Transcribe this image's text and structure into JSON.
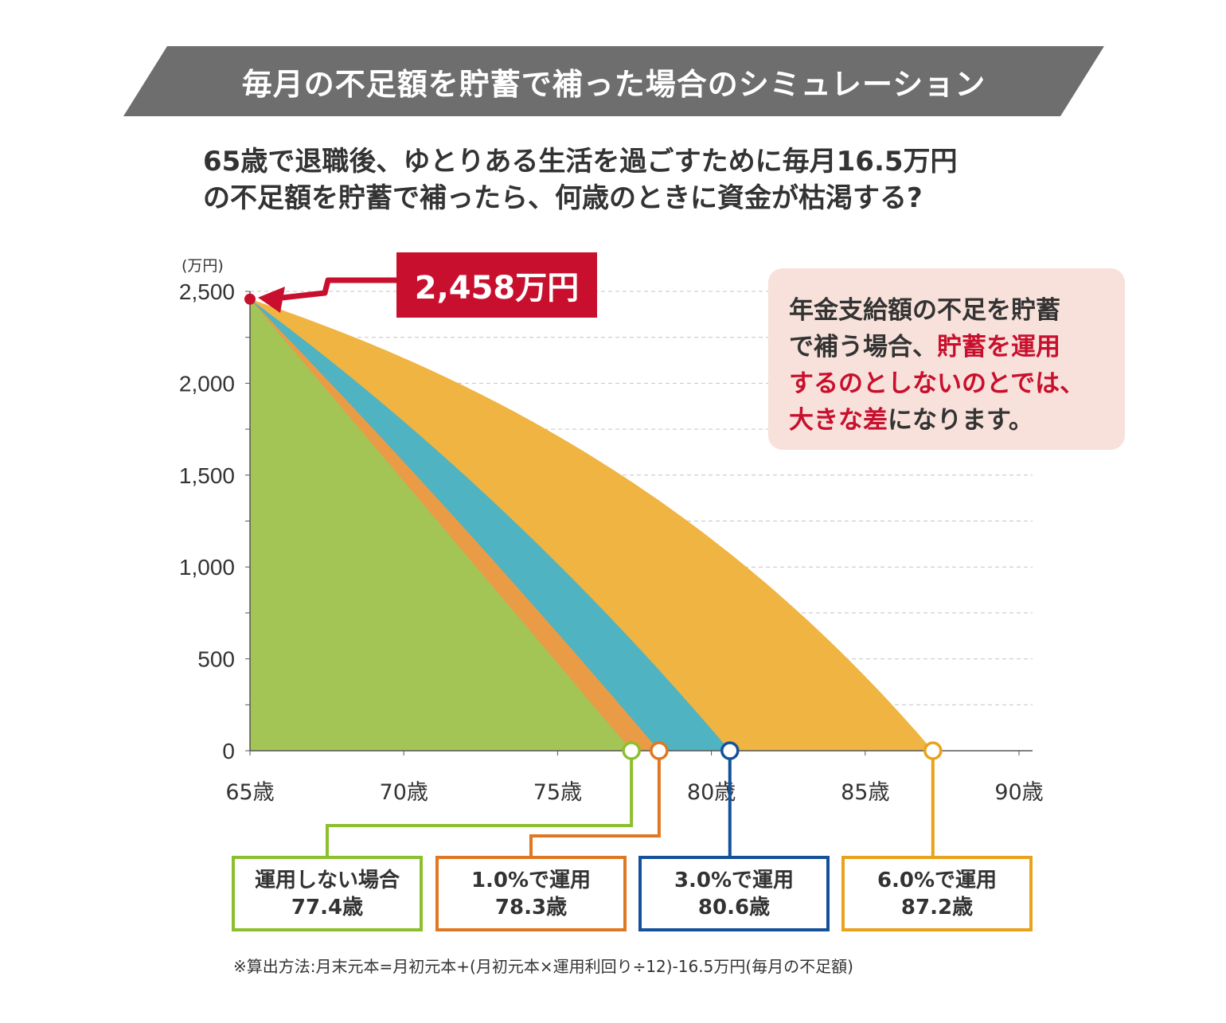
{
  "header": {
    "title": "毎月の不足額を貯蓄で補った場合のシミュレーション"
  },
  "question": {
    "line1": "65歳で退職後、ゆとりある生活を過ごすために毎月16.5万円",
    "line2": "の不足額を貯蓄で補ったら、何歳のときに資金が枯渇する?"
  },
  "callout": {
    "label": "2,458万円"
  },
  "note": {
    "line1": "年金支給額の不足を貯蓄",
    "line2_a": "で補う場合、",
    "line2_b": "貯蓄を運用",
    "line3": "するのとしないのとでは、",
    "line4_a": "大きな差",
    "line4_b": "になります。"
  },
  "scenarios": [
    {
      "label": "運用しない場合",
      "age_label": "77.4歳"
    },
    {
      "label": "1.0%で運用",
      "age_label": "78.3歳"
    },
    {
      "label": "3.0%で運用",
      "age_label": "80.6歳"
    },
    {
      "label": "6.0%で運用",
      "age_label": "87.2歳"
    }
  ],
  "footnote": "※算出方法:月末元本=月初元本+(月初元本×運用利回り÷12)-16.5万円(毎月の不足額)",
  "chart_data": {
    "type": "area",
    "unit_label": "(万円)",
    "x_ticks": [
      "65歳",
      "70歳",
      "75歳",
      "80歳",
      "85歳",
      "90歳"
    ],
    "y_ticks": [
      "0",
      "500",
      "1,000",
      "1,500",
      "2,000",
      "2,500"
    ],
    "xlim": [
      65,
      90
    ],
    "ylim": [
      0,
      2500
    ],
    "grid": true,
    "start_value": 2458,
    "monthly_withdrawal": 16.5,
    "series": [
      {
        "name": "6.0%で運用",
        "rate": 0.06,
        "depletion_age": 87.2,
        "color": "#efb441",
        "line_color": "#e8a21c"
      },
      {
        "name": "3.0%で運用",
        "rate": 0.03,
        "depletion_age": 80.6,
        "color": "#4fb3c1",
        "line_color": "#14519a"
      },
      {
        "name": "1.0%で運用",
        "rate": 0.01,
        "depletion_age": 78.3,
        "color": "#ea9b45",
        "line_color": "#e07722"
      },
      {
        "name": "運用しない場合",
        "rate": 0.0,
        "depletion_age": 77.4,
        "color": "#a3c556",
        "line_color": "#8cbf2e"
      }
    ],
    "marker_color": "#c8102e"
  }
}
